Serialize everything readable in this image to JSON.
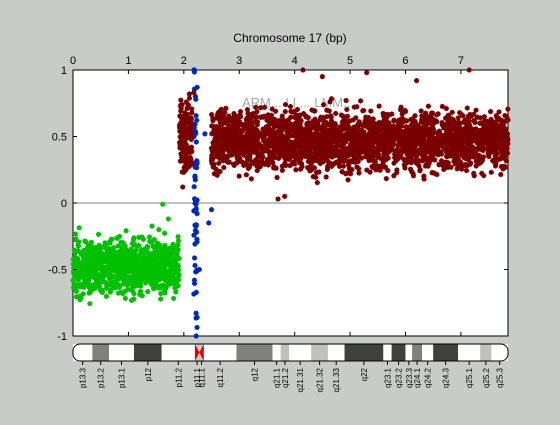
{
  "chart_data": {
    "type": "scatter",
    "title": "Chromosome 17 (bp)",
    "xlabel": "",
    "ylabel": "",
    "x_axis_position": "top",
    "xlim": [
      0,
      7.85
    ],
    "ylim": [
      -1,
      1
    ],
    "x_ticks": [
      "0",
      "1",
      "2",
      "3",
      "4",
      "5",
      "6",
      "7"
    ],
    "y_ticks": [
      "-1",
      "-0.5",
      "0",
      "0.5",
      "1"
    ],
    "grid": false,
    "zero_line": true,
    "marker": "asterisk",
    "faint_overlay_text": "ARM... LI ... LMM...",
    "series": [
      {
        "color": "#00c000",
        "segments": [
          {
            "x_range": [
              0.0,
              1.92
            ],
            "y_center": -0.48,
            "y_spread": 0.1,
            "density": 900
          }
        ],
        "outliers": [
          [
            1.62,
            -0.01
          ],
          [
            1.72,
            -0.12
          ],
          [
            1.55,
            -0.2
          ],
          [
            1.8,
            -0.35
          ],
          [
            0.05,
            -0.65
          ]
        ]
      },
      {
        "color": "#0028b8",
        "segments": [
          {
            "x_range": [
              2.18,
              2.24
            ],
            "y_center": 0.0,
            "y_spread": 0.55,
            "density": 60
          }
        ],
        "outliers": [
          [
            2.24,
            0.87
          ],
          [
            2.38,
            0.52
          ],
          [
            2.24,
            -0.86
          ],
          [
            2.28,
            -0.5
          ],
          [
            2.5,
            -0.05
          ],
          [
            2.5,
            0.32
          ],
          [
            2.45,
            -0.15
          ]
        ]
      },
      {
        "color": "#7a0000",
        "segments": [
          {
            "x_range": [
              1.92,
              2.15
            ],
            "y_center": 0.5,
            "y_spread": 0.14,
            "density": 140
          },
          {
            "x_range": [
              2.5,
              7.85
            ],
            "y_center": 0.47,
            "y_spread": 0.11,
            "density": 2600
          }
        ],
        "outliers": [
          [
            2.18,
            0.83
          ],
          [
            2.1,
            0.82
          ],
          [
            3.82,
            0.05
          ],
          [
            3.7,
            0.03
          ],
          [
            4.15,
            1.0
          ],
          [
            7.15,
            1.0
          ],
          [
            5.3,
            0.98
          ],
          [
            6.2,
            0.92
          ],
          [
            4.5,
            0.95
          ],
          [
            2.02,
            0.25
          ],
          [
            1.98,
            0.12
          ]
        ]
      }
    ]
  },
  "ideogram": {
    "bands": [
      {
        "label": "p13.3",
        "x0": 0.0,
        "x1": 0.35,
        "stain": "#ffffff"
      },
      {
        "label": "p13.2",
        "x0": 0.35,
        "x1": 0.65,
        "stain": "#808080"
      },
      {
        "label": "p13.1",
        "x0": 0.65,
        "x1": 1.1,
        "stain": "#ffffff"
      },
      {
        "label": "p12",
        "x0": 1.1,
        "x1": 1.6,
        "stain": "#404040"
      },
      {
        "label": "p11.2",
        "x0": 1.6,
        "x1": 2.2,
        "stain": "#ffffff"
      },
      {
        "label": "p11.1",
        "x0": 2.2,
        "x1": 2.28,
        "stain": "#e00000"
      },
      {
        "label": "q11.1",
        "x0": 2.28,
        "x1": 2.36,
        "stain": "#e00000"
      },
      {
        "label": "q11.2",
        "x0": 2.36,
        "x1": 2.95,
        "stain": "#ffffff"
      },
      {
        "label": "q12",
        "x0": 2.95,
        "x1": 3.6,
        "stain": "#808080"
      },
      {
        "label": "q21.1",
        "x0": 3.6,
        "x1": 3.75,
        "stain": "#ffffff"
      },
      {
        "label": "q21.2",
        "x0": 3.75,
        "x1": 3.9,
        "stain": "#c0c0c0"
      },
      {
        "label": "q21.31",
        "x0": 3.9,
        "x1": 4.3,
        "stain": "#ffffff"
      },
      {
        "label": "q21.32",
        "x0": 4.3,
        "x1": 4.6,
        "stain": "#c0c0c0"
      },
      {
        "label": "q21.33",
        "x0": 4.6,
        "x1": 4.9,
        "stain": "#ffffff"
      },
      {
        "label": "q22",
        "x0": 4.9,
        "x1": 5.6,
        "stain": "#404040"
      },
      {
        "label": "q23.1",
        "x0": 5.6,
        "x1": 5.75,
        "stain": "#ffffff"
      },
      {
        "label": "q23.2",
        "x0": 5.75,
        "x1": 6.0,
        "stain": "#404040"
      },
      {
        "label": "q23.3",
        "x0": 6.0,
        "x1": 6.12,
        "stain": "#ffffff"
      },
      {
        "label": "q24.1",
        "x0": 6.12,
        "x1": 6.3,
        "stain": "#808080"
      },
      {
        "label": "q24.2",
        "x0": 6.3,
        "x1": 6.5,
        "stain": "#ffffff"
      },
      {
        "label": "q24.3",
        "x0": 6.5,
        "x1": 6.95,
        "stain": "#404040"
      },
      {
        "label": "q25.1",
        "x0": 6.95,
        "x1": 7.35,
        "stain": "#ffffff"
      },
      {
        "label": "q25.2",
        "x0": 7.35,
        "x1": 7.55,
        "stain": "#c0c0c0"
      },
      {
        "label": "q25.3",
        "x0": 7.55,
        "x1": 7.85,
        "stain": "#ffffff"
      }
    ]
  }
}
